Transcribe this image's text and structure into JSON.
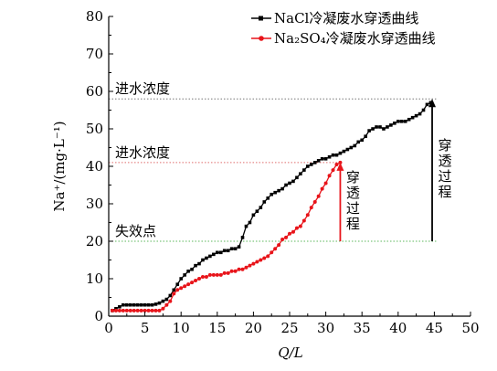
{
  "chart_data": {
    "type": "line",
    "xlabel": "Q/L",
    "ylabel": "Na⁺/(mg·L⁻¹)",
    "xlim": [
      0,
      50
    ],
    "ylim": [
      0,
      80
    ],
    "x_ticks": [
      "0",
      "5",
      "10",
      "15",
      "20",
      "25",
      "30",
      "35",
      "40",
      "45",
      "50"
    ],
    "y_ticks": [
      "0",
      "10",
      "20",
      "30",
      "40",
      "50",
      "60",
      "70",
      "80"
    ],
    "grid": false,
    "legend_position": "top-right",
    "series": [
      {
        "name": "NaCl冷凝废水穿透曲线",
        "color": "#000000",
        "marker": "square",
        "x": [
          0.5,
          1,
          1.5,
          2,
          2.5,
          3,
          3.5,
          4,
          4.5,
          5,
          5.5,
          6,
          6.5,
          7,
          7.5,
          8,
          8.5,
          9,
          9.5,
          10,
          10.5,
          11,
          11.5,
          12,
          12.5,
          13,
          13.5,
          14,
          14.5,
          15,
          15.5,
          16,
          16.5,
          17,
          17.5,
          18,
          18.5,
          19,
          19.5,
          20,
          20.5,
          21,
          21.5,
          22,
          22.5,
          23,
          23.5,
          24,
          24.5,
          25,
          25.5,
          26,
          26.5,
          27,
          27.5,
          28,
          28.5,
          29,
          29.5,
          30,
          30.5,
          31,
          31.5,
          32,
          32.5,
          33,
          33.5,
          34,
          34.5,
          35,
          35.5,
          36,
          36.5,
          37,
          37.5,
          38,
          38.5,
          39,
          39.5,
          40,
          40.5,
          41,
          41.5,
          42,
          42.5,
          43,
          43.5,
          44,
          44.5
        ],
        "y": [
          1.5,
          2,
          2.5,
          3,
          3,
          3,
          3,
          3,
          3,
          3,
          3,
          3,
          3.2,
          3.5,
          4,
          4.5,
          5.5,
          7,
          8.5,
          10,
          11,
          12,
          12.5,
          13.5,
          14,
          15,
          15.5,
          16,
          16.5,
          17,
          17,
          17.5,
          17.5,
          18,
          18,
          18.5,
          21,
          24,
          25,
          27,
          28,
          29,
          30.5,
          31.5,
          32.5,
          33,
          33.5,
          34,
          35,
          35.5,
          36,
          37,
          38,
          39,
          40,
          40.5,
          41,
          41.5,
          42,
          42,
          42.5,
          43,
          43,
          43.5,
          44,
          44.5,
          45,
          45.5,
          46.5,
          47,
          48,
          49.5,
          50,
          50.5,
          50.5,
          50,
          50.5,
          51,
          51.5,
          52,
          52,
          52,
          52.5,
          53,
          53.5,
          54,
          55,
          56.5,
          57
        ]
      },
      {
        "name": "Na₂SO₄冷凝废水穿透曲线",
        "color": "#e8141a",
        "marker": "circle",
        "x": [
          0.5,
          1,
          1.5,
          2,
          2.5,
          3,
          3.5,
          4,
          4.5,
          5,
          5.5,
          6,
          6.5,
          7,
          7.5,
          8,
          8.5,
          9,
          9.5,
          10,
          10.5,
          11,
          11.5,
          12,
          12.5,
          13,
          13.5,
          14,
          14.5,
          15,
          15.5,
          16,
          16.5,
          17,
          17.5,
          18,
          18.5,
          19,
          19.5,
          20,
          20.5,
          21,
          21.5,
          22,
          22.5,
          23,
          23.5,
          24,
          24.5,
          25,
          25.5,
          26,
          26.5,
          27,
          27.5,
          28,
          28.5,
          29,
          29.5,
          30,
          30.5,
          31,
          31.5,
          32
        ],
        "y": [
          1.5,
          1.5,
          1.5,
          1.5,
          1.5,
          1.5,
          1.5,
          1.5,
          1.5,
          1.5,
          1.5,
          1.5,
          1.5,
          1.5,
          2,
          3,
          4,
          6,
          7,
          7.5,
          8,
          8.5,
          9,
          9.5,
          10,
          10.5,
          10.5,
          11,
          11,
          11,
          11,
          11.5,
          11.5,
          12,
          12,
          12.5,
          12.5,
          13,
          13.5,
          14,
          14.5,
          15,
          15.5,
          16,
          17,
          18,
          19,
          20.5,
          21,
          22,
          22.5,
          23.5,
          24,
          25.5,
          27,
          29,
          30.5,
          32,
          34,
          35.5,
          37.5,
          39,
          40.5,
          41
        ]
      }
    ],
    "reference_lines": [
      {
        "y": 58,
        "label": "进水浓度",
        "color": "#777777",
        "x_end": 45
      },
      {
        "y": 41,
        "label": "进水浓度",
        "color": "#e06d6d",
        "x_end": 32
      },
      {
        "y": 20,
        "label": "失效点",
        "color": "#5cb85c",
        "x_end": 45
      }
    ],
    "vertical_arrows": [
      {
        "x": 44.7,
        "y_from": 20,
        "y_to": 58,
        "color": "#000000",
        "label": "穿透过程"
      },
      {
        "x": 32,
        "y_from": 20,
        "y_to": 41,
        "color": "#e8141a",
        "label": "穿透过程"
      }
    ]
  }
}
